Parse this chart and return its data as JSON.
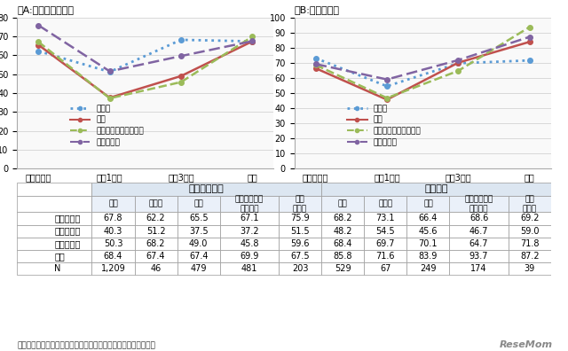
{
  "title_A": "（A:ふたり親世帯）",
  "title_B": "（B:母子世帯）",
  "x_labels": [
    "出産半年前",
    "出産1年後",
    "出産3年後",
    "現在"
  ],
  "A": {
    "中学校": [
      62.2,
      51.2,
      68.2,
      67.4
    ],
    "高校": [
      65.5,
      37.5,
      49.0,
      67.4
    ],
    "短大・高専・専修学校": [
      67.1,
      37.2,
      45.8,
      69.9
    ],
    "大学（院）": [
      75.9,
      51.5,
      59.6,
      67.5
    ]
  },
  "B": {
    "中学校": [
      73.1,
      54.5,
      69.7,
      71.6
    ],
    "高校": [
      66.4,
      45.6,
      70.1,
      83.9
    ],
    "短大・高専・専修学校": [
      68.6,
      46.7,
      64.7,
      93.7
    ],
    "大学（院）": [
      69.2,
      59.0,
      71.8,
      87.2
    ]
  },
  "A_ylim": [
    0,
    80
  ],
  "B_ylim": [
    0,
    100
  ],
  "A_yticks": [
    0,
    10,
    20,
    30,
    40,
    50,
    60,
    70,
    80
  ],
  "B_yticks": [
    0,
    10,
    20,
    30,
    40,
    50,
    60,
    70,
    80,
    90,
    100
  ],
  "line_styles": {
    "中学校": {
      "color": "#5b9bd5",
      "linestyle": "dotted",
      "marker": "o",
      "linewidth": 1.8
    },
    "高校": {
      "color": "#c0504d",
      "linestyle": "solid",
      "marker": "o",
      "linewidth": 1.8
    },
    "短大・高専・専修学校": {
      "color": "#9bbb59",
      "linestyle": "dashed",
      "marker": "o",
      "linewidth": 1.8
    },
    "大学（院）": {
      "color": "#8064a2",
      "linestyle": "dashed",
      "marker": "o",
      "linewidth": 1.8
    }
  },
  "table_data": {
    "ふたり親世帯": {
      "headers": [
        "全体",
        "中学校",
        "高校",
        "短大・高専・\n専修学校",
        "大学\n（院）"
      ],
      "rows": {
        "出産半年前": [
          67.8,
          62.2,
          65.5,
          67.1,
          75.9
        ],
        "出産１年後": [
          40.3,
          51.2,
          37.5,
          37.2,
          51.5
        ],
        "出産３年後": [
          50.3,
          68.2,
          49.0,
          45.8,
          59.6
        ],
        "現在": [
          68.4,
          67.4,
          67.4,
          69.9,
          67.5
        ]
      },
      "N": [
        1209,
        46,
        479,
        481,
        203
      ]
    },
    "母子世帯": {
      "headers": [
        "全体",
        "中学校",
        "高校",
        "短大・高専・\n専修学校",
        "大学\n（院）"
      ],
      "rows": {
        "出産半年前": [
          68.2,
          73.1,
          66.4,
          68.6,
          69.2
        ],
        "出産１年後": [
          48.2,
          54.5,
          45.6,
          46.7,
          59.0
        ],
        "出産３年後": [
          68.4,
          69.7,
          70.1,
          64.7,
          71.8
        ],
        "現在": [
          85.8,
          71.6,
          83.9,
          93.7,
          87.2
        ]
      },
      "N": [
        529,
        67,
        249,
        174,
        39
      ]
    }
  },
  "note": "注：第１子が３歳以上の母親（除く無回答）が集計対象である。",
  "bg_color": "#ffffff",
  "chart_bg": "#f2f2f2",
  "table_header_bg": "#dce6f1",
  "table_row_label_color": "#000000"
}
